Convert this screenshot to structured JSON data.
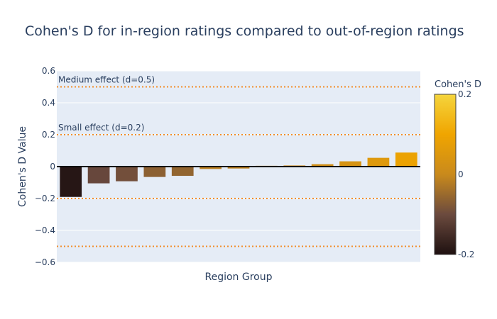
{
  "chart_data": {
    "type": "bar",
    "title": "Cohen's D for in-region ratings compared to out-of-region ratings",
    "xlabel": "Region Group",
    "ylabel": "Cohen's D Value",
    "ylim": [
      -0.6,
      0.6
    ],
    "yticks": [
      -0.6,
      -0.4,
      -0.2,
      0,
      0.2,
      0.4,
      0.6
    ],
    "ytick_labels": [
      "−0.6",
      "−0.4",
      "−0.2",
      "0",
      "0.2",
      "0.4",
      "0.6"
    ],
    "grid": true,
    "values": [
      -0.19,
      -0.105,
      -0.092,
      -0.065,
      -0.058,
      -0.015,
      -0.012,
      0.005,
      0.007,
      0.015,
      0.033,
      0.055,
      0.088
    ],
    "reference_lines": [
      {
        "value": 0.5,
        "label": "Medium effect (d=0.5)",
        "style": "dotted",
        "color": "#f28e2b"
      },
      {
        "value": 0.2,
        "label": "Small effect (d=0.2)",
        "style": "dotted",
        "color": "#f28e2b"
      },
      {
        "value": -0.2,
        "label": "",
        "style": "dotted",
        "color": "#f28e2b"
      },
      {
        "value": -0.5,
        "label": "",
        "style": "dotted",
        "color": "#f28e2b"
      }
    ],
    "colorbar": {
      "title": "Cohen's D",
      "range": [
        -0.2,
        0.2
      ],
      "ticks": [
        0.2,
        0,
        -0.2
      ],
      "tick_labels": [
        "0.2",
        "0",
        "-0.2"
      ],
      "colorscale": [
        "#1e1010",
        "#6b4a3e",
        "#c98a1c",
        "#f0a500",
        "#f5d53d"
      ]
    },
    "colors": {
      "plot_bg": "#e5ecf6",
      "grid": "#ffffff",
      "zero_line": "#000000",
      "text": "#2a3f5f"
    }
  }
}
